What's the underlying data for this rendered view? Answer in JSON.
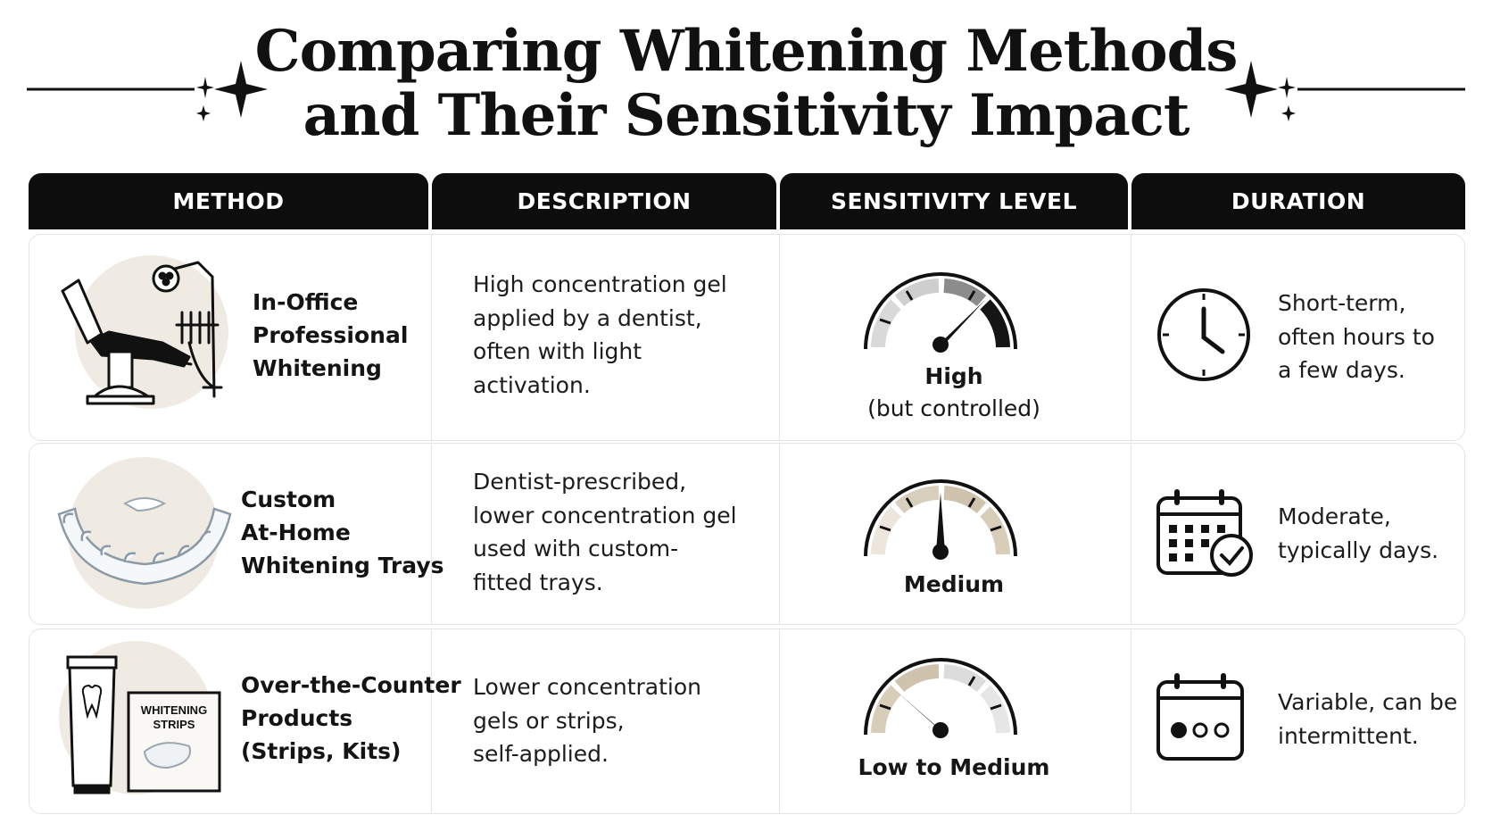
{
  "title": {
    "line1": "Comparing Whitening Methods",
    "line2": "and Their Sensitivity Impact"
  },
  "columns": {
    "method": "METHOD",
    "description": "DESCRIPTION",
    "sensitivity": "SENSITIVITY LEVEL",
    "duration": "DURATION"
  },
  "rows": [
    {
      "method": [
        "In-Office",
        "Professional",
        "Whitening"
      ],
      "description": [
        "High concentration gel",
        "applied by a dentist,",
        "often with light",
        "activation."
      ],
      "sensitivity": {
        "label": "High",
        "note": "(but controlled)",
        "level_fraction": 0.78
      },
      "duration": [
        "Short-term,",
        "often hours to",
        "a few days."
      ],
      "method_icon": "dental-chair-icon",
      "duration_icon": "clock-icon"
    },
    {
      "method": [
        "Custom",
        "At-Home",
        "Whitening Trays"
      ],
      "description": [
        "Dentist-prescribed,",
        "lower concentration gel",
        "used with custom-",
        "fitted trays."
      ],
      "sensitivity": {
        "label": "Medium",
        "note": "",
        "level_fraction": 0.5
      },
      "duration": [
        "Moderate,",
        "typically days."
      ],
      "method_icon": "whitening-tray-icon",
      "duration_icon": "calendar-check-icon"
    },
    {
      "method": [
        "Over-the-Counter",
        "Products",
        "(Strips, Kits)"
      ],
      "description": [
        "Lower concentration",
        "gels or strips,",
        "self-applied."
      ],
      "sensitivity": {
        "label": "Low to Medium",
        "note": "",
        "level_fraction": 0.25
      },
      "duration": [
        "Variable, can be",
        "intermittent."
      ],
      "method_icon": "toothpaste-strips-icon",
      "duration_icon": "calendar-dots-icon",
      "box_text": [
        "WHITENING",
        "STRIPS"
      ]
    }
  ],
  "colors": {
    "header_bg": "#0d0d0d",
    "header_text": "#ffffff",
    "icon_circle": "#efebe3",
    "gauge_dark": "#151515",
    "gauge_beige": "#d8cdb8",
    "gauge_light": "#e6e6e6"
  }
}
